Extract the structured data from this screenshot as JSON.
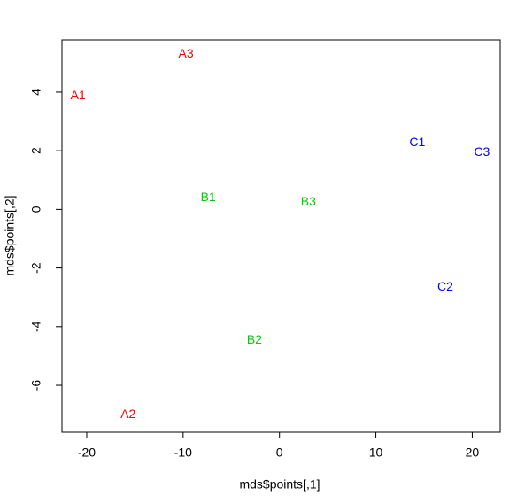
{
  "chart_data": {
    "type": "scatter",
    "xlabel": "mds$points[,1]",
    "ylabel": "mds$points[,2]",
    "xlim": [
      -22.57,
      22.9
    ],
    "ylim": [
      -7.6,
      5.78
    ],
    "xticks": [
      -20,
      -10,
      0,
      10,
      20
    ],
    "yticks": [
      -6,
      -4,
      -2,
      0,
      2,
      4
    ],
    "series": [
      {
        "color": "#ff0000",
        "labels": [
          "A1",
          "A2",
          "A3"
        ],
        "x": [
          -20.9,
          -15.7,
          -9.7
        ],
        "values": [
          3.87,
          -7.0,
          5.29
        ]
      },
      {
        "color": "#00cc00",
        "labels": [
          "B1",
          "B2",
          "B3"
        ],
        "x": [
          -7.4,
          -2.6,
          3.0
        ],
        "values": [
          0.39,
          -4.47,
          0.24
        ]
      },
      {
        "color": "#0000ff",
        "labels": [
          "C1",
          "C2",
          "C3"
        ],
        "x": [
          14.3,
          17.2,
          21.0
        ],
        "values": [
          2.27,
          -2.66,
          1.93
        ]
      }
    ]
  }
}
